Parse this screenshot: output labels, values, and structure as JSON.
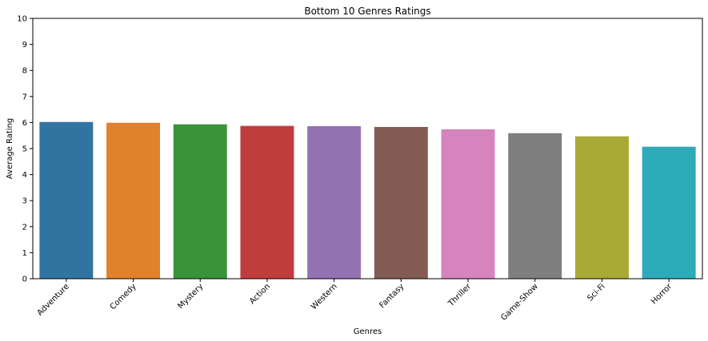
{
  "chart_data": {
    "type": "bar",
    "title": "Bottom 10 Genres Ratings",
    "xlabel": "Genres",
    "ylabel": "Average Rating",
    "categories": [
      "Adventure",
      "Comedy",
      "Mystery",
      "Action",
      "Western",
      "Fantasy",
      "Thriller",
      "Game-Show",
      "Sci-Fi",
      "Horror"
    ],
    "values": [
      6.02,
      5.99,
      5.93,
      5.87,
      5.86,
      5.83,
      5.74,
      5.59,
      5.47,
      5.07
    ],
    "colors": [
      "#3274a1",
      "#e1812c",
      "#3a923a",
      "#c03d3e",
      "#9372b2",
      "#845b53",
      "#d684bd",
      "#7f7f7f",
      "#a9aa35",
      "#2eabb8"
    ],
    "ylim": [
      0,
      10
    ],
    "yticks": [
      0,
      1,
      2,
      3,
      4,
      5,
      6,
      7,
      8,
      9,
      10
    ],
    "grid": false,
    "legend": "none"
  }
}
